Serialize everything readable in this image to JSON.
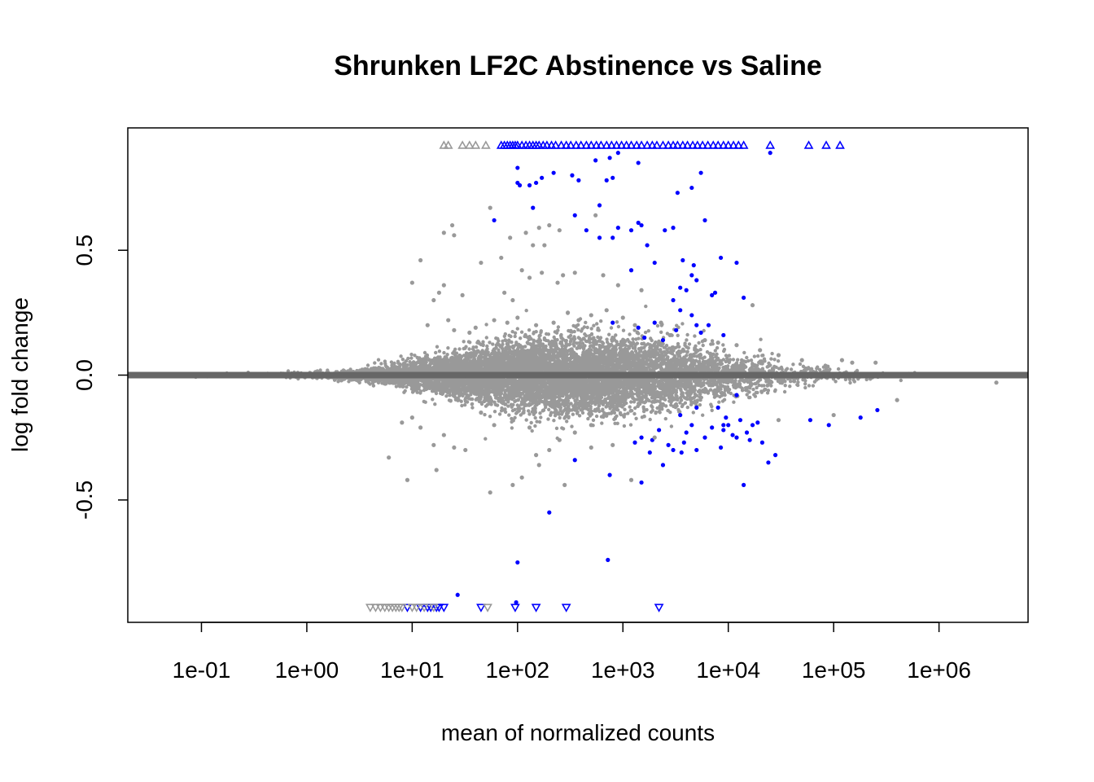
{
  "chart_data": {
    "type": "scatter",
    "title": "Shrunken LF2C Abstinence vs Saline",
    "xlabel": "mean of normalized counts",
    "ylabel": "log fold change",
    "x_scale": "log10",
    "xlim": [
      0.02,
      7000000
    ],
    "ylim": [
      -0.99,
      0.99
    ],
    "x_ticks": [
      {
        "value": 0.1,
        "label": "1e-01"
      },
      {
        "value": 1,
        "label": "1e+00"
      },
      {
        "value": 10,
        "label": "1e+01"
      },
      {
        "value": 100,
        "label": "1e+02"
      },
      {
        "value": 1000,
        "label": "1e+03"
      },
      {
        "value": 10000,
        "label": "1e+04"
      },
      {
        "value": 100000,
        "label": "1e+05"
      },
      {
        "value": 1000000,
        "label": "1e+06"
      }
    ],
    "y_ticks": [
      {
        "value": -0.5,
        "label": "-0.5"
      },
      {
        "value": 0.0,
        "label": "0.0"
      },
      {
        "value": 0.5,
        "label": "0.5"
      }
    ],
    "reference_line": {
      "y": 0,
      "color": "#666666"
    },
    "colors": {
      "significant": "#0000ff",
      "not_significant": "#999999"
    },
    "series": [
      {
        "marker": "circle",
        "color": "#0000ff",
        "points": [
          [
            100,
            0.83
          ],
          [
            100,
            0.77
          ],
          [
            105,
            0.76
          ],
          [
            130,
            0.76
          ],
          [
            150,
            0.77
          ],
          [
            140,
            0.67
          ],
          [
            170,
            0.79
          ],
          [
            220,
            0.81
          ],
          [
            330,
            0.8
          ],
          [
            380,
            0.78
          ],
          [
            550,
            0.86
          ],
          [
            750,
            0.87
          ],
          [
            900,
            0.89
          ],
          [
            700,
            0.78
          ],
          [
            800,
            0.79
          ],
          [
            1400,
            0.85
          ],
          [
            3300,
            0.73
          ],
          [
            4500,
            0.75
          ],
          [
            5500,
            0.81
          ],
          [
            600,
            0.68
          ],
          [
            60,
            0.62
          ],
          [
            350,
            0.64
          ],
          [
            450,
            0.58
          ],
          [
            600,
            0.55
          ],
          [
            800,
            0.55
          ],
          [
            900,
            0.59
          ],
          [
            1200,
            0.58
          ],
          [
            1400,
            0.61
          ],
          [
            1700,
            0.52
          ],
          [
            1500,
            0.6
          ],
          [
            2500,
            0.58
          ],
          [
            3000,
            0.59
          ],
          [
            4700,
            0.44
          ],
          [
            6000,
            0.62
          ],
          [
            8500,
            0.47
          ],
          [
            12000,
            0.45
          ],
          [
            1200,
            0.42
          ],
          [
            2000,
            0.45
          ],
          [
            3700,
            0.46
          ],
          [
            4500,
            0.4
          ],
          [
            5000,
            0.38
          ],
          [
            7000,
            0.32
          ],
          [
            7500,
            0.33
          ],
          [
            14000,
            0.31
          ],
          [
            3500,
            0.35
          ],
          [
            4000,
            0.34
          ],
          [
            3000,
            0.3
          ],
          [
            3500,
            0.26
          ],
          [
            4500,
            0.24
          ],
          [
            5000,
            0.2
          ],
          [
            5500,
            0.17
          ],
          [
            6500,
            0.2
          ],
          [
            2000,
            0.21
          ],
          [
            9000,
            0.16
          ],
          [
            1400,
            0.19
          ],
          [
            1600,
            0.15
          ],
          [
            2400,
            0.14
          ],
          [
            800,
            0.21
          ],
          [
            3200,
            0.18
          ],
          [
            12000,
            -0.08
          ],
          [
            5000,
            -0.13
          ],
          [
            8000,
            -0.13
          ],
          [
            10000,
            -0.2
          ],
          [
            13000,
            -0.18
          ],
          [
            9000,
            -0.22
          ],
          [
            11000,
            -0.24
          ],
          [
            7000,
            -0.21
          ],
          [
            15000,
            -0.23
          ],
          [
            17000,
            -0.2
          ],
          [
            16000,
            -0.26
          ],
          [
            19000,
            -0.19
          ],
          [
            21000,
            -0.27
          ],
          [
            12000,
            -0.25
          ],
          [
            9500,
            -0.17
          ],
          [
            8500,
            -0.29
          ],
          [
            6000,
            -0.25
          ],
          [
            4500,
            -0.2
          ],
          [
            4000,
            -0.23
          ],
          [
            3500,
            -0.16
          ],
          [
            3800,
            -0.27
          ],
          [
            3000,
            -0.3
          ],
          [
            2700,
            -0.28
          ],
          [
            2200,
            -0.22
          ],
          [
            1900,
            -0.26
          ],
          [
            1800,
            -0.31
          ],
          [
            2400,
            -0.36
          ],
          [
            1300,
            -0.27
          ],
          [
            1500,
            -0.25
          ],
          [
            5000,
            -0.3
          ],
          [
            3600,
            -0.31
          ],
          [
            9000,
            -0.2
          ],
          [
            24000,
            -0.35
          ],
          [
            28000,
            -0.32
          ],
          [
            14000,
            -0.44
          ],
          [
            1500,
            -0.43
          ],
          [
            750,
            -0.4
          ],
          [
            350,
            -0.34
          ],
          [
            200,
            -0.55
          ],
          [
            100,
            -0.75
          ],
          [
            720,
            -0.74
          ],
          [
            27,
            -0.88
          ],
          [
            97,
            -0.91
          ],
          [
            60000,
            -0.18
          ],
          [
            90000,
            -0.2
          ],
          [
            180000,
            -0.17
          ],
          [
            260000,
            -0.14
          ],
          [
            25000,
            0.89
          ]
        ]
      },
      {
        "marker": "triangle-up",
        "color": "#0000ff",
        "points": [
          [
            70,
            0.92
          ],
          [
            75,
            0.92
          ],
          [
            80,
            0.92
          ],
          [
            85,
            0.92
          ],
          [
            90,
            0.92
          ],
          [
            95,
            0.92
          ],
          [
            100,
            0.92
          ],
          [
            110,
            0.92
          ],
          [
            120,
            0.92
          ],
          [
            130,
            0.92
          ],
          [
            140,
            0.92
          ],
          [
            150,
            0.92
          ],
          [
            160,
            0.92
          ],
          [
            175,
            0.92
          ],
          [
            190,
            0.92
          ],
          [
            210,
            0.92
          ],
          [
            230,
            0.92
          ],
          [
            260,
            0.92
          ],
          [
            290,
            0.92
          ],
          [
            320,
            0.92
          ],
          [
            360,
            0.92
          ],
          [
            400,
            0.92
          ],
          [
            450,
            0.92
          ],
          [
            500,
            0.92
          ],
          [
            560,
            0.92
          ],
          [
            620,
            0.92
          ],
          [
            700,
            0.92
          ],
          [
            780,
            0.92
          ],
          [
            870,
            0.92
          ],
          [
            970,
            0.92
          ],
          [
            1080,
            0.92
          ],
          [
            1200,
            0.92
          ],
          [
            1350,
            0.92
          ],
          [
            1500,
            0.92
          ],
          [
            1700,
            0.92
          ],
          [
            1900,
            0.92
          ],
          [
            2100,
            0.92
          ],
          [
            2400,
            0.92
          ],
          [
            2700,
            0.92
          ],
          [
            3000,
            0.92
          ],
          [
            3300,
            0.92
          ],
          [
            3700,
            0.92
          ],
          [
            4100,
            0.92
          ],
          [
            4600,
            0.92
          ],
          [
            5100,
            0.92
          ],
          [
            5700,
            0.92
          ],
          [
            6400,
            0.92
          ],
          [
            7200,
            0.92
          ],
          [
            8000,
            0.92
          ],
          [
            9000,
            0.92
          ],
          [
            10000,
            0.92
          ],
          [
            11200,
            0.92
          ],
          [
            12500,
            0.92
          ],
          [
            14000,
            0.92
          ],
          [
            25000,
            0.92
          ],
          [
            58000,
            0.92
          ],
          [
            85000,
            0.92
          ],
          [
            115000,
            0.92
          ]
        ]
      },
      {
        "marker": "triangle-down",
        "color": "#0000ff",
        "points": [
          [
            9,
            -0.93
          ],
          [
            12,
            -0.93
          ],
          [
            14,
            -0.93
          ],
          [
            15,
            -0.93
          ],
          [
            17,
            -0.93
          ],
          [
            18,
            -0.93
          ],
          [
            20,
            -0.93
          ],
          [
            45,
            -0.93
          ],
          [
            95,
            -0.93
          ],
          [
            150,
            -0.93
          ],
          [
            290,
            -0.93
          ],
          [
            2200,
            -0.93
          ]
        ]
      },
      {
        "marker": "triangle-up",
        "color": "#999999",
        "points": [
          [
            20,
            0.92
          ],
          [
            22,
            0.92
          ],
          [
            30,
            0.92
          ],
          [
            35,
            0.92
          ],
          [
            40,
            0.92
          ],
          [
            50,
            0.92
          ]
        ]
      },
      {
        "marker": "triangle-down",
        "color": "#999999",
        "points": [
          [
            4,
            -0.93
          ],
          [
            4.5,
            -0.93
          ],
          [
            5,
            -0.93
          ],
          [
            5.5,
            -0.93
          ],
          [
            6,
            -0.93
          ],
          [
            6.5,
            -0.93
          ],
          [
            7,
            -0.93
          ],
          [
            7.5,
            -0.93
          ],
          [
            8,
            -0.93
          ],
          [
            10,
            -0.93
          ],
          [
            11,
            -0.93
          ],
          [
            13,
            -0.93
          ],
          [
            16,
            -0.93
          ],
          [
            52,
            -0.93
          ]
        ]
      },
      {
        "marker": "circle",
        "color": "#999999",
        "points": [
          [
            55,
            0.67
          ],
          [
            25,
            0.56
          ],
          [
            24,
            0.6
          ],
          [
            20,
            0.57
          ],
          [
            12,
            0.46
          ],
          [
            85,
            0.55
          ],
          [
            120,
            0.57
          ],
          [
            140,
            0.52
          ],
          [
            160,
            0.59
          ],
          [
            180,
            0.52
          ],
          [
            200,
            0.6
          ],
          [
            250,
            0.58
          ],
          [
            550,
            0.64
          ],
          [
            70,
            0.47
          ],
          [
            45,
            0.45
          ],
          [
            110,
            0.42
          ],
          [
            130,
            0.39
          ],
          [
            170,
            0.41
          ],
          [
            240,
            0.37
          ],
          [
            270,
            0.4
          ],
          [
            350,
            0.41
          ],
          [
            650,
            0.4
          ],
          [
            900,
            0.36
          ],
          [
            1500,
            0.34
          ],
          [
            17000,
            0.28
          ],
          [
            30,
            0.32
          ],
          [
            20,
            0.36
          ],
          [
            18,
            0.33
          ],
          [
            10,
            0.37
          ],
          [
            16,
            0.3
          ],
          [
            75,
            0.33
          ],
          [
            90,
            0.3
          ],
          [
            14,
            0.2
          ],
          [
            22,
            0.22
          ],
          [
            25,
            0.18
          ],
          [
            35,
            0.17
          ],
          [
            40,
            0.19
          ],
          [
            60,
            0.22
          ],
          [
            80,
            0.21
          ],
          [
            100,
            0.23
          ],
          [
            150,
            0.2
          ],
          [
            220,
            0.21
          ],
          [
            300,
            0.25
          ],
          [
            380,
            0.22
          ],
          [
            500,
            0.24
          ],
          [
            700,
            0.26
          ],
          [
            1000,
            0.23
          ],
          [
            1300,
            0.2
          ],
          [
            2300,
            0.21
          ],
          [
            2800,
            0.16
          ],
          [
            6000,
            0.14
          ],
          [
            8000,
            0.13
          ],
          [
            12000,
            0.12
          ],
          [
            20000,
            0.1
          ],
          [
            30000,
            0.08
          ],
          [
            50000,
            0.06
          ],
          [
            120000,
            0.06
          ],
          [
            150000,
            0.05
          ],
          [
            250000,
            0.05
          ],
          [
            10,
            -0.17
          ],
          [
            8,
            -0.19
          ],
          [
            16,
            -0.28
          ],
          [
            20,
            -0.24
          ],
          [
            12,
            -0.21
          ],
          [
            9,
            -0.42
          ],
          [
            17,
            -0.38
          ],
          [
            6,
            -0.33
          ],
          [
            25,
            -0.29
          ],
          [
            32,
            -0.3
          ],
          [
            55,
            -0.47
          ],
          [
            90,
            -0.44
          ],
          [
            110,
            -0.41
          ],
          [
            160,
            -0.36
          ],
          [
            200,
            -0.3
          ],
          [
            280,
            -0.44
          ],
          [
            150,
            -0.32
          ],
          [
            250,
            -0.26
          ],
          [
            350,
            -0.23
          ],
          [
            500,
            -0.29
          ],
          [
            1200,
            -0.42
          ],
          [
            800,
            -0.28
          ],
          [
            2000,
            -0.25
          ],
          [
            30000,
            -0.18
          ],
          [
            100000,
            -0.16
          ],
          [
            400000,
            -0.1
          ],
          [
            3500000,
            -0.03
          ],
          [
            500,
            -0.2
          ],
          [
            130,
            -0.21
          ],
          [
            60,
            -0.2
          ],
          [
            45,
            -0.15
          ],
          [
            300,
            -0.15
          ]
        ]
      }
    ],
    "dense_cloud": {
      "color": "#999999",
      "description_points_envelope": [
        [
          0.05,
          0.005
        ],
        [
          1,
          0.01
        ],
        [
          3,
          0.02
        ],
        [
          10,
          0.05
        ],
        [
          30,
          0.08
        ],
        [
          100,
          0.12
        ],
        [
          300,
          0.14
        ],
        [
          1000,
          0.14
        ],
        [
          3000,
          0.12
        ],
        [
          10000,
          0.08
        ],
        [
          30000,
          0.05
        ],
        [
          100000,
          0.03
        ],
        [
          300000,
          0.02
        ],
        [
          1000000,
          0.01
        ],
        [
          6000000,
          0.005
        ]
      ]
    }
  }
}
